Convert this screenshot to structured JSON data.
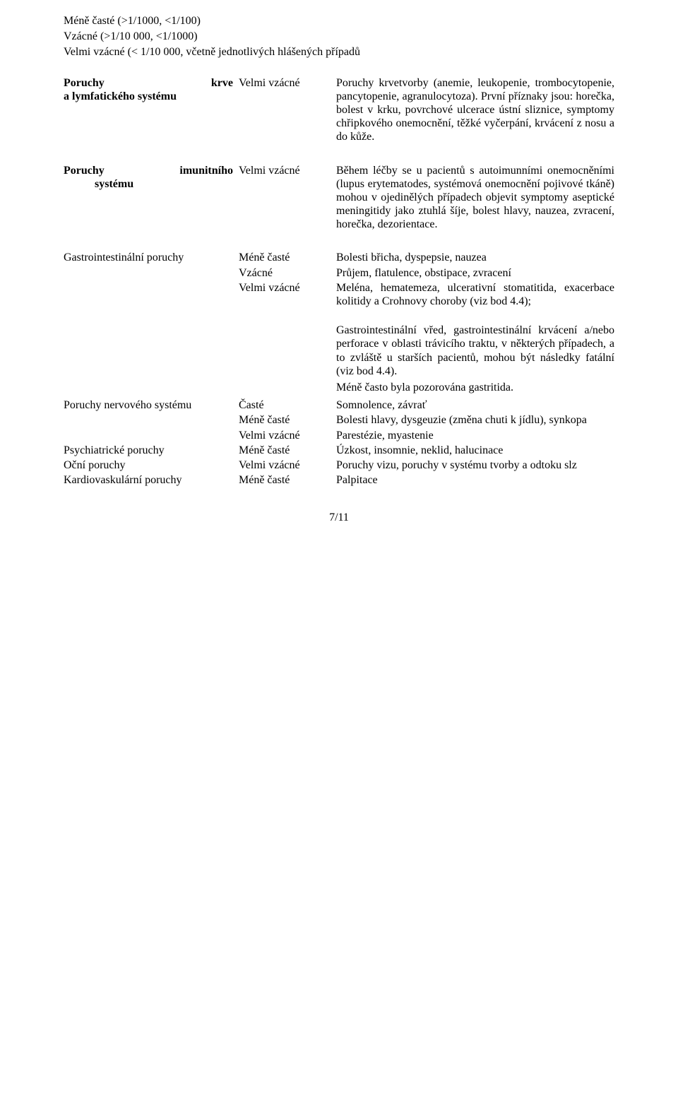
{
  "intro": {
    "l1": "Méně časté (>1/1000, <1/100)",
    "l2": "Vzácné (>1/10 000, <1/1000)",
    "l3": "Velmi vzácné (< 1/10 000, včetně jednotlivých hlášených případů"
  },
  "rows": {
    "r1": {
      "sys_a": "Poruchy",
      "sys_b": "krve",
      "sys_c": "a lymfatického systému",
      "freq": "Velmi vzácné",
      "desc": "Poruchy krvetvorby (anemie, leukopenie, trombocytopenie, pancytopenie, agranulocytoza). První příznaky jsou: horečka, bolest v krku, povrchové ulcerace ústní sliznice, symptomy chřipkového onemocnění, těžké vyčerpání, krvácení z nosu a do kůže."
    },
    "r2": {
      "sys_a": "Poruchy",
      "sys_b": "imunitního",
      "sys_c": "systému",
      "freq": "Velmi vzácné",
      "desc": "Během léčby se u pacientů s autoimunními onemocněními (lupus erytematodes, systémová onemocnění pojivové tkáně) mohou v ojedinělých případech objevit symptomy aseptické meningitidy jako ztuhlá šíje, bolest hlavy, nauzea, zvracení, horečka, dezorientace."
    },
    "r3": {
      "sys": "Gastrointestinální poruchy",
      "freq": "Méně časté",
      "desc": "Bolesti břicha, dyspepsie, nauzea"
    },
    "r4": {
      "freq": "Vzácné",
      "desc": "Průjem, flatulence, obstipace, zvracení"
    },
    "r5": {
      "freq": "Velmi vzácné",
      "desc1": "Meléna, hematemeza, ulcerativní stomatitida, exacerbace kolitidy a Crohnovy choroby (viz bod 4.4);",
      "desc2": "Gastrointestinální vřed, gastrointestinální krvácení a/nebo perforace v oblasti trávicího traktu, v některých případech, a to zvláště u starších pacientů,  mohou být následky fatální (viz bod 4.4).",
      "desc3": "Méně často byla pozorována gastritida."
    },
    "r6": {
      "sys": "Poruchy nervového systému",
      "freq": "Časté",
      "desc": "Somnolence, závrať"
    },
    "r7": {
      "freq": "Méně časté",
      "desc": "Bolesti hlavy, dysgeuzie (změna chuti k jídlu), synkopa"
    },
    "r8": {
      "freq": "Velmi vzácné",
      "desc": "Parestézie, myastenie"
    },
    "r9": {
      "sys": "Psychiatrické poruchy",
      "freq": "Méně časté",
      "desc": " Úzkost, insomnie, neklid, halucinace"
    },
    "r10": {
      "sys": "Oční poruchy",
      "freq": "Velmi vzácné",
      "desc": "Poruchy vizu, poruchy v systému tvorby a odtoku slz"
    },
    "r11": {
      "sys": "Kardiovaskulární poruchy",
      "freq": "Méně časté",
      "desc": "Palpitace"
    }
  },
  "pagenum": "7/11"
}
